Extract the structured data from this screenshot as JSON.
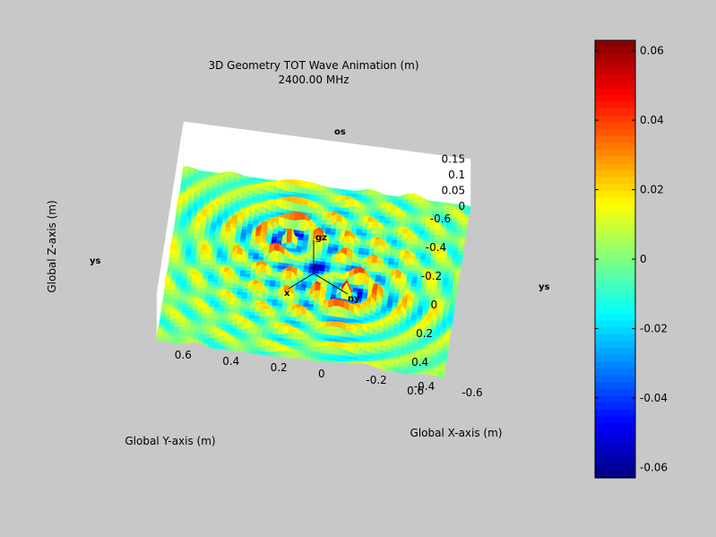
{
  "chart_data": {
    "type": "surface",
    "title": "3D Geometry TOT Wave Animation (m)",
    "subtitle": "2400.00 MHz",
    "xlabel": "Global X-axis (m)",
    "ylabel": "Global Y-axis (m)",
    "zlabel": "Global Z-axis (m)",
    "xlim": [
      -0.6,
      0.6
    ],
    "ylim": [
      -0.6,
      0.6
    ],
    "zlim": [
      -0.05,
      0.15
    ],
    "x_ticks": [
      "-0.6",
      "-0.4",
      "-0.2",
      "0",
      "0.2",
      "0.4",
      "0.6"
    ],
    "y_ticks": [
      "-0.6",
      "-0.4",
      "-0.2",
      "0",
      "0.2",
      "0.4",
      "0.6"
    ],
    "z_ticks": [
      "0.15",
      "0.1",
      "0.05",
      "0"
    ],
    "colormap": "jet",
    "clim": [
      -0.063,
      0.063
    ],
    "colorbar_ticks": [
      "0.06",
      "0.04",
      "0.02",
      "0",
      "-0.02",
      "-0.04",
      "-0.06"
    ],
    "sources": [
      {
        "x": -0.12,
        "y": -0.2,
        "peak": 0.063
      },
      {
        "x": 0.15,
        "y": 0.12,
        "peak": 0.063
      }
    ],
    "markers": [
      "os",
      "ys",
      "ys",
      "gz",
      "x",
      "ny"
    ]
  }
}
